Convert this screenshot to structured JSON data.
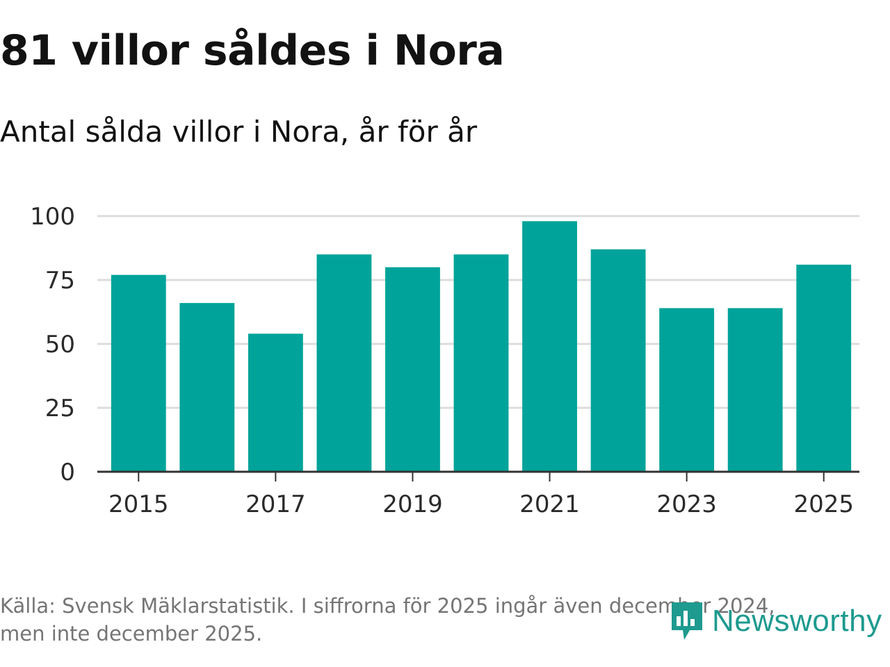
{
  "title": "81 villor såldes i Nora",
  "subtitle": "Antal sålda villor i Nora, år för år",
  "source_line1": "Källa: Svensk Mäklarstatistik. I siffrorna för 2025 ingår även december 2024,",
  "source_line2": "men inte december 2025.",
  "logo_text": "Newsworthy",
  "colors": {
    "bar": "#00a39a",
    "grid": "#dcdcdc",
    "axis": "#333333",
    "logo": "#1e9a8f"
  },
  "chart_data": {
    "type": "bar",
    "title": "81 villor såldes i Nora",
    "subtitle": "Antal sålda villor i Nora, år för år",
    "xlabel": "",
    "ylabel": "",
    "ylim": [
      0,
      100
    ],
    "yticks": [
      0,
      25,
      50,
      75,
      100
    ],
    "grid": true,
    "categories": [
      "2015",
      "2016",
      "2017",
      "2018",
      "2019",
      "2020",
      "2021",
      "2022",
      "2023",
      "2024",
      "2025"
    ],
    "x_tick_labels": [
      "2015",
      "2017",
      "2019",
      "2021",
      "2023",
      "2025"
    ],
    "values": [
      77,
      66,
      54,
      85,
      80,
      85,
      98,
      87,
      64,
      64,
      81
    ]
  }
}
